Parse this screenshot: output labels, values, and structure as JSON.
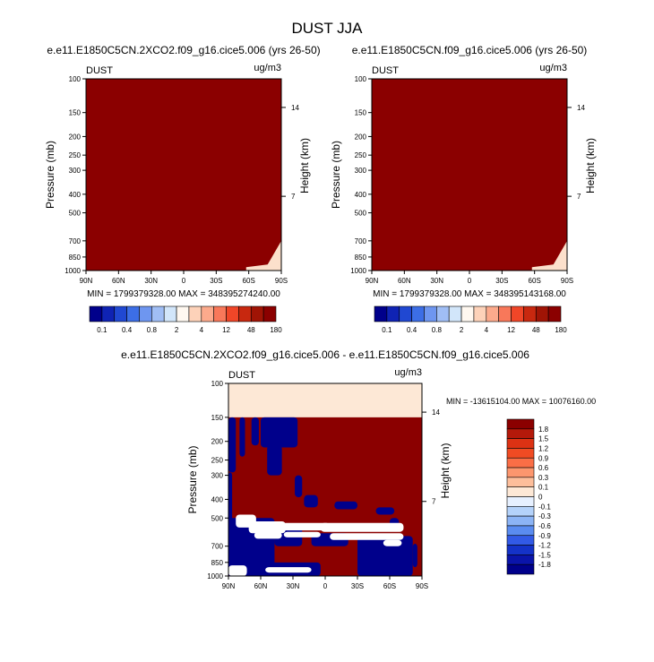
{
  "main_title": "DUST JJA",
  "colors": {
    "dark_red": "#8b0000",
    "navy": "#00008b",
    "cream": "#fde8d6",
    "white": "#ffffff"
  },
  "chart_data": [
    {
      "type": "heatmap",
      "title": "e.e11.E1850C5CN.2XCO2.f09_g16.cice5.006 (yrs 26-50)",
      "left_label": "DUST",
      "right_label": "ug/m3",
      "ylabel": "Pressure (mb)",
      "ylabel_right": "Height (km)",
      "y_ticks": [
        "100",
        "150",
        "200",
        "250",
        "300",
        "400",
        "500",
        "700",
        "850",
        "1000"
      ],
      "y_tick_values": [
        100,
        150,
        200,
        250,
        300,
        400,
        500,
        700,
        850,
        1000
      ],
      "height_ticks": [
        "14",
        "7"
      ],
      "height_tick_pressures": [
        141,
        410
      ],
      "x_ticks": [
        "90N",
        "60N",
        "30N",
        "0",
        "30S",
        "60S",
        "90S"
      ],
      "x_tick_values": [
        90,
        60,
        30,
        0,
        -30,
        -60,
        -90
      ],
      "stats": "MIN = 1799379328.00  MAX = 348395274240.00",
      "field_description": "Dark red everywhere (>180) except a small lighter area near 1000 mb at 80S-90S"
    },
    {
      "type": "heatmap",
      "title": "e.e11.E1850C5CN.f09_g16.cice5.006 (yrs 26-50)",
      "left_label": "DUST",
      "right_label": "ug/m3",
      "ylabel": "Pressure (mb)",
      "ylabel_right": "Height (km)",
      "y_ticks": [
        "100",
        "150",
        "200",
        "250",
        "300",
        "400",
        "500",
        "700",
        "850",
        "1000"
      ],
      "y_tick_values": [
        100,
        150,
        200,
        250,
        300,
        400,
        500,
        700,
        850,
        1000
      ],
      "height_ticks": [
        "14",
        "7"
      ],
      "height_tick_pressures": [
        141,
        410
      ],
      "x_ticks": [
        "90N",
        "60N",
        "30N",
        "0",
        "30S",
        "60S",
        "90S"
      ],
      "x_tick_values": [
        90,
        60,
        30,
        0,
        -30,
        -60,
        -90
      ],
      "stats": "MIN = 1799379328.00  MAX = 348395143168.00"
    },
    {
      "type": "heatmap",
      "title": "e.e11.E1850C5CN.2XCO2.f09_g16.cice5.006 - e.e11.E1850C5CN.f09_g16.cice5.006",
      "left_label": "DUST",
      "right_label": "ug/m3",
      "ylabel": "Pressure (mb)",
      "ylabel_right": "Height (km)",
      "y_ticks": [
        "100",
        "150",
        "200",
        "250",
        "300",
        "400",
        "500",
        "700",
        "850",
        "1000"
      ],
      "y_tick_values": [
        100,
        150,
        200,
        250,
        300,
        400,
        500,
        700,
        850,
        1000
      ],
      "height_ticks": [
        "14",
        "7"
      ],
      "height_tick_pressures": [
        141,
        410
      ],
      "x_ticks": [
        "90N",
        "60N",
        "30N",
        "0",
        "30S",
        "60S",
        "90S"
      ],
      "x_tick_values": [
        90,
        60,
        30,
        0,
        -30,
        -60,
        -90
      ],
      "stats": "MIN = -13615104.00  MAX = 10076160.00",
      "field_description": "Difference field: mixed dark-red (>1.8) and navy (<-1.8) bands with white near-zero bands; cream (0 to 0.1) above 150 mb"
    }
  ],
  "colorbar_abs": {
    "labels": [
      "0.1",
      "0.4",
      "0.8",
      "2",
      "4",
      "12",
      "48",
      "180"
    ],
    "colors": [
      "#00008b",
      "#0f23b4",
      "#2048d2",
      "#3c6ee6",
      "#6e96f0",
      "#a0bef5",
      "#d2e6fa",
      "#fff8f0",
      "#fdd2b9",
      "#fcaa8c",
      "#f8785a",
      "#f04628",
      "#c8280f",
      "#a01405",
      "#8b0000"
    ]
  },
  "colorbar_diff": {
    "labels": [
      "1.8",
      "1.5",
      "1.2",
      "0.9",
      "0.6",
      "0.3",
      "0.1",
      "0",
      "-0.1",
      "-0.3",
      "-0.6",
      "-0.9",
      "-1.2",
      "-1.5",
      "-1.8"
    ],
    "colors": [
      "#8b0000",
      "#b4190a",
      "#dc3214",
      "#f04b23",
      "#fa6e46",
      "#fc966e",
      "#fdbe9b",
      "#fde8d6",
      "#e6f0ff",
      "#b4d2fa",
      "#8cb4f5",
      "#5a8cf0",
      "#325ae6",
      "#1432c8",
      "#0a14aa",
      "#00008b"
    ]
  }
}
